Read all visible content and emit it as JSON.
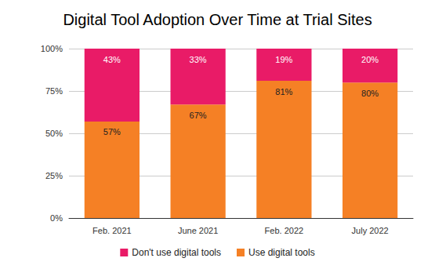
{
  "chart_data": {
    "type": "bar",
    "title": "Digital Tool Adoption Over Time at Trial Sites",
    "categories": [
      "Feb. 2021",
      "June 2021",
      "Feb. 2022",
      "July 2022"
    ],
    "series": [
      {
        "name": "Don't use digital tools",
        "color": "#e91b67",
        "values": [
          43,
          33,
          19,
          20
        ],
        "value_labels": [
          "43%",
          "33%",
          "19%",
          "20%"
        ]
      },
      {
        "name": "Use digital tools",
        "color": "#f58025",
        "values": [
          57,
          67,
          81,
          80
        ],
        "value_labels": [
          "57%",
          "67%",
          "81%",
          "80%"
        ]
      }
    ],
    "ylim": [
      0,
      100
    ],
    "yticks": [
      {
        "value": 0,
        "label": "0%"
      },
      {
        "value": 25,
        "label": "25%"
      },
      {
        "value": 50,
        "label": "50%"
      },
      {
        "value": 75,
        "label": "75%"
      },
      {
        "value": 100,
        "label": "100%"
      }
    ],
    "stacked": true,
    "grid": true,
    "legend": "bottom",
    "data_labels": true
  }
}
